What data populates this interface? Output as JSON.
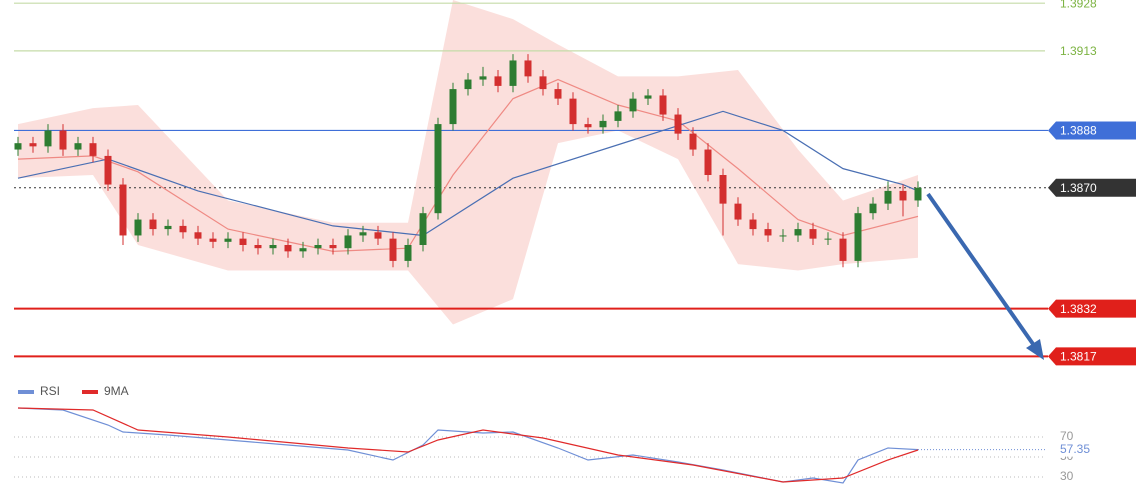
{
  "chart_data": [
    {
      "type": "candlestick",
      "ylim": [
        1.3808,
        1.3929
      ],
      "bull_color": "#2e7d32",
      "bear_color": "#d32f2f",
      "candles": [
        [
          1.3882,
          1.3886,
          1.388,
          1.3884
        ],
        [
          1.3884,
          1.3886,
          1.3881,
          1.3883
        ],
        [
          1.3883,
          1.389,
          1.3881,
          1.3888
        ],
        [
          1.3888,
          1.389,
          1.388,
          1.3882
        ],
        [
          1.3882,
          1.3886,
          1.388,
          1.3884
        ],
        [
          1.3884,
          1.3886,
          1.3878,
          1.388
        ],
        [
          1.388,
          1.3882,
          1.3869,
          1.3871
        ],
        [
          1.3871,
          1.3873,
          1.3852,
          1.3855
        ],
        [
          1.3855,
          1.3862,
          1.3853,
          1.386
        ],
        [
          1.386,
          1.3862,
          1.3855,
          1.3857
        ],
        [
          1.3857,
          1.386,
          1.3855,
          1.3858
        ],
        [
          1.3858,
          1.386,
          1.3854,
          1.3856
        ],
        [
          1.3856,
          1.3858,
          1.3852,
          1.3854
        ],
        [
          1.3854,
          1.3856,
          1.3851,
          1.3853
        ],
        [
          1.3853,
          1.3856,
          1.3851,
          1.3854
        ],
        [
          1.3854,
          1.3856,
          1.385,
          1.3852
        ],
        [
          1.3852,
          1.3854,
          1.3849,
          1.3851
        ],
        [
          1.3851,
          1.3854,
          1.3849,
          1.3852
        ],
        [
          1.3852,
          1.3854,
          1.3848,
          1.385
        ],
        [
          1.385,
          1.3853,
          1.3848,
          1.3851
        ],
        [
          1.3851,
          1.3854,
          1.3849,
          1.3852
        ],
        [
          1.3852,
          1.3854,
          1.3849,
          1.3851
        ],
        [
          1.3851,
          1.3857,
          1.3849,
          1.3855
        ],
        [
          1.3855,
          1.3858,
          1.3853,
          1.3856
        ],
        [
          1.3856,
          1.3858,
          1.3852,
          1.3854
        ],
        [
          1.3854,
          1.3856,
          1.3845,
          1.3847
        ],
        [
          1.3847,
          1.3854,
          1.3845,
          1.3852
        ],
        [
          1.3852,
          1.3864,
          1.385,
          1.3862
        ],
        [
          1.3862,
          1.3892,
          1.386,
          1.389
        ],
        [
          1.389,
          1.3903,
          1.3888,
          1.3901
        ],
        [
          1.3901,
          1.3906,
          1.3899,
          1.3904
        ],
        [
          1.3904,
          1.3908,
          1.3902,
          1.3905
        ],
        [
          1.3905,
          1.3907,
          1.39,
          1.3902
        ],
        [
          1.3902,
          1.3912,
          1.39,
          1.391
        ],
        [
          1.391,
          1.3912,
          1.3903,
          1.3905
        ],
        [
          1.3905,
          1.3907,
          1.3899,
          1.3901
        ],
        [
          1.3901,
          1.3903,
          1.3896,
          1.3898
        ],
        [
          1.3898,
          1.39,
          1.3888,
          1.389
        ],
        [
          1.389,
          1.3892,
          1.3887,
          1.3889
        ],
        [
          1.3889,
          1.3893,
          1.3887,
          1.3891
        ],
        [
          1.3891,
          1.3896,
          1.3889,
          1.3894
        ],
        [
          1.3894,
          1.39,
          1.3892,
          1.3898
        ],
        [
          1.3898,
          1.3901,
          1.3896,
          1.3899
        ],
        [
          1.3899,
          1.3901,
          1.3891,
          1.3893
        ],
        [
          1.3893,
          1.3895,
          1.3885,
          1.3887
        ],
        [
          1.3887,
          1.3889,
          1.388,
          1.3882
        ],
        [
          1.3882,
          1.3884,
          1.3872,
          1.3874
        ],
        [
          1.3874,
          1.3876,
          1.3855,
          1.3865
        ],
        [
          1.3865,
          1.3867,
          1.3858,
          1.386
        ],
        [
          1.386,
          1.3862,
          1.3855,
          1.3857
        ],
        [
          1.3857,
          1.3859,
          1.3853,
          1.3855
        ],
        [
          1.3855,
          1.3857,
          1.3853,
          1.3855
        ],
        [
          1.3855,
          1.3859,
          1.3853,
          1.3857
        ],
        [
          1.3857,
          1.3859,
          1.3852,
          1.3854
        ],
        [
          1.3854,
          1.3856,
          1.3852,
          1.3854
        ],
        [
          1.3854,
          1.3856,
          1.3845,
          1.3847
        ],
        [
          1.3847,
          1.3864,
          1.3845,
          1.3862
        ],
        [
          1.3862,
          1.3867,
          1.386,
          1.3865
        ],
        [
          1.3865,
          1.3872,
          1.3863,
          1.3869
        ],
        [
          1.3869,
          1.3871,
          1.3861,
          1.3866
        ],
        [
          1.3866,
          1.3872,
          1.3864,
          1.387
        ]
      ],
      "band": {
        "color": "#f9c9c4",
        "x": [
          0,
          5,
          8,
          14,
          21,
          26,
          29,
          33,
          36,
          40,
          44,
          48,
          52,
          55,
          60
        ],
        "upper": [
          1.389,
          1.3895,
          1.3896,
          1.3866,
          1.3859,
          1.3859,
          1.3929,
          1.3923,
          1.3915,
          1.3905,
          1.3905,
          1.3907,
          1.3882,
          1.3866,
          1.3874
        ],
        "lower": [
          1.3873,
          1.3874,
          1.3852,
          1.3844,
          1.3844,
          1.3844,
          1.3827,
          1.3835,
          1.3884,
          1.3888,
          1.3879,
          1.3846,
          1.3844,
          1.3846,
          1.3848
        ]
      },
      "series": [
        {
          "color": "#ef8a84",
          "x": [
            0,
            5,
            8,
            14,
            21,
            26,
            29,
            33,
            36,
            40,
            44,
            48,
            52,
            55,
            60
          ],
          "values": [
            1.3879,
            1.388,
            1.3875,
            1.3857,
            1.385,
            1.3851,
            1.3874,
            1.3898,
            1.3904,
            1.3896,
            1.3891,
            1.3876,
            1.386,
            1.3855,
            1.3861
          ]
        },
        {
          "color": "#4a6fb3",
          "x": [
            0,
            6,
            12,
            21,
            27,
            33,
            41,
            47,
            51,
            55,
            59,
            60
          ],
          "values": [
            1.3873,
            1.3879,
            1.3869,
            1.3858,
            1.3855,
            1.3873,
            1.3885,
            1.3894,
            1.3888,
            1.3876,
            1.3871,
            1.3869
          ]
        }
      ],
      "levels": [
        {
          "value": 1.3928,
          "color": "#c5dca8",
          "text_color": "#7cb342",
          "boxed": false,
          "dashed": false
        },
        {
          "value": 1.3913,
          "color": "#c5dca8",
          "text_color": "#7cb342",
          "boxed": false,
          "dashed": false
        },
        {
          "value": 1.3888,
          "color": "#3f6fd8",
          "text_color": "#ffffff",
          "boxed": true,
          "dashed": false
        },
        {
          "value": 1.387,
          "label": "1.3870",
          "color": "#333333",
          "text_color": "#ffffff",
          "boxed": true,
          "dashed": true
        },
        {
          "value": 1.3832,
          "color": "#e0201b",
          "text_color": "#ffffff",
          "boxed": true,
          "dashed": false
        },
        {
          "value": 1.3817,
          "color": "#e0201b",
          "text_color": "#ffffff",
          "boxed": true,
          "dashed": false
        }
      ]
    },
    {
      "type": "line",
      "ylim": [
        7,
        122
      ],
      "yticks": [
        70,
        50,
        30
      ],
      "grid": true,
      "series": [
        {
          "name": "RSI",
          "color": "#6f8fd6",
          "x": [
            0,
            3,
            6,
            7,
            10,
            14,
            18,
            22,
            25,
            27,
            28,
            31,
            33,
            36,
            38,
            41,
            44,
            47,
            51,
            53,
            55,
            56,
            58,
            60
          ],
          "values": [
            99,
            97,
            82,
            75,
            72,
            67,
            62,
            57,
            47,
            62,
            77,
            74,
            75,
            59,
            47,
            52,
            45,
            37,
            25,
            29,
            24,
            47,
            59,
            57.35
          ]
        },
        {
          "name": "9MA",
          "color": "#e02a2a",
          "x": [
            0,
            5,
            8,
            14,
            22,
            26,
            28,
            31,
            35,
            40,
            45,
            51,
            55,
            58,
            60
          ],
          "values": [
            99,
            97,
            77,
            70,
            59,
            55,
            67,
            77,
            69,
            52,
            42,
            25,
            29,
            47,
            57
          ]
        }
      ]
    }
  ]
}
